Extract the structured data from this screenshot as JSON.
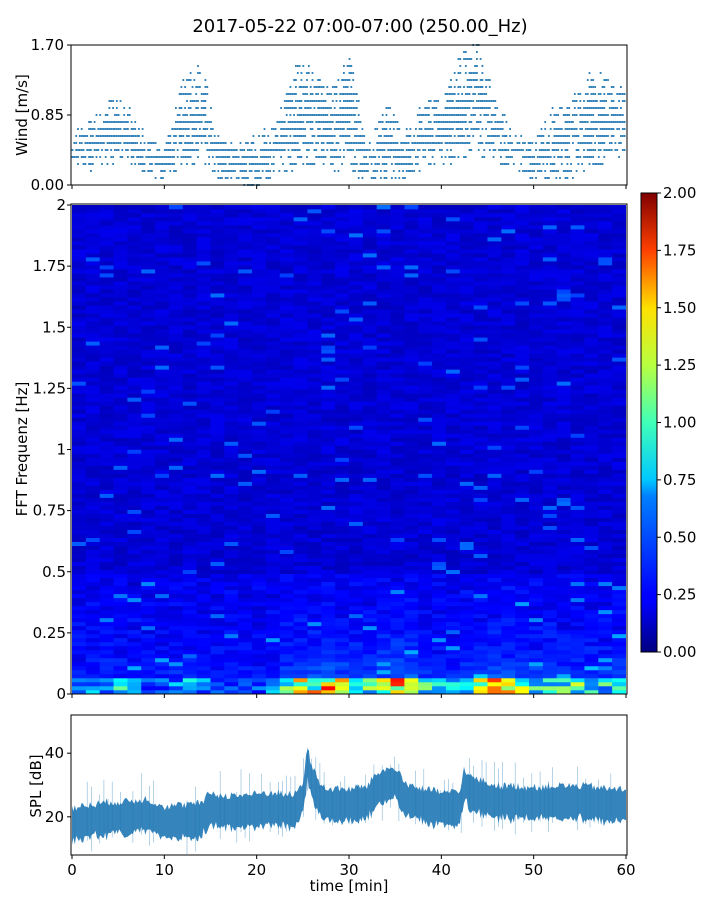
{
  "figure": {
    "title": "2017-05-22 07:00-07:00 (250.00_Hz)"
  },
  "colors": {
    "series": "#1f77b4",
    "axis": "#000000",
    "background": "#ffffff"
  },
  "chart_data": [
    {
      "type": "scatter",
      "ylabel": "Wind [m/s]",
      "xlim": [
        0,
        60
      ],
      "ylim": [
        0,
        1.7
      ],
      "yticks": [
        "0.00",
        "0.85",
        "1.70"
      ],
      "xticks_shown": false,
      "series": [
        {
          "x": [
            0,
            2,
            4,
            6,
            8,
            10,
            12,
            14,
            16,
            18,
            20,
            22,
            24,
            26,
            28,
            30,
            32,
            34,
            36,
            38,
            40,
            42,
            44,
            46,
            48,
            50,
            52,
            54,
            56,
            58,
            60
          ],
          "y_max": [
            0.6,
            0.75,
            1.05,
            0.95,
            0.6,
            0.4,
            1.25,
            1.45,
            0.55,
            0.45,
            0.6,
            0.7,
            1.45,
            1.45,
            1.1,
            1.6,
            0.45,
            1.0,
            0.6,
            1.0,
            1.0,
            1.55,
            1.7,
            1.0,
            0.6,
            0.5,
            0.9,
            1.0,
            1.4,
            1.3,
            1.1
          ],
          "y_min": [
            0.3,
            0.2,
            0.25,
            0.3,
            0.15,
            0.1,
            0.25,
            0.3,
            0.1,
            0.05,
            0.0,
            0.1,
            0.2,
            0.25,
            0.2,
            0.2,
            0.05,
            0.1,
            0.1,
            0.2,
            0.3,
            0.25,
            0.4,
            0.3,
            0.2,
            0.05,
            0.05,
            0.1,
            0.2,
            0.3,
            0.4
          ]
        }
      ]
    },
    {
      "type": "heatmap",
      "ylabel": "FFT Frequenz [Hz]",
      "xlim": [
        0,
        60
      ],
      "ylim": [
        0,
        2
      ],
      "yticks": [
        "0",
        "0.25",
        "0.5",
        "0.75",
        "1",
        "1.25",
        "1.5",
        "1.75",
        "2"
      ],
      "colormap": "jet",
      "colorbar": {
        "vmin": 0,
        "vmax": 2,
        "ticks": [
          "0.00",
          "0.25",
          "0.50",
          "0.75",
          "1.00",
          "1.25",
          "1.50",
          "1.75",
          "2.00"
        ]
      },
      "band_activity": [
        0.4,
        0.5,
        0.6,
        0.5,
        0.4,
        0.35,
        0.6,
        0.5,
        0.4,
        0.35,
        0.4,
        0.5,
        1.0,
        1.1,
        1.3,
        0.9,
        0.8,
        1.2,
        1.3,
        0.8,
        0.6,
        0.6,
        1.1,
        1.3,
        1.0,
        0.8,
        0.9,
        0.9,
        0.8,
        0.7,
        0.6
      ]
    },
    {
      "type": "line",
      "ylabel": "SPL [dB]",
      "xlabel": "time [min]",
      "xlim": [
        0,
        60
      ],
      "ylim": [
        8,
        52
      ],
      "yticks": [
        "20",
        "40"
      ],
      "xticks": [
        "0",
        "10",
        "20",
        "30",
        "40",
        "50",
        "60"
      ],
      "series": [
        {
          "x": [
            0,
            2,
            4,
            6,
            8,
            10,
            12,
            14,
            15,
            16,
            18,
            20,
            22,
            24,
            25,
            25.5,
            26,
            27,
            28,
            30,
            32,
            33,
            34,
            35,
            36,
            38,
            40,
            42,
            42.5,
            43,
            44,
            46,
            48,
            50,
            52,
            54,
            56,
            58,
            60
          ],
          "y": [
            18,
            19,
            20,
            20,
            21,
            18.5,
            19,
            19.5,
            23,
            22,
            22,
            22.5,
            23,
            22,
            26,
            37,
            31,
            25,
            24,
            24,
            25,
            29,
            30,
            31,
            26,
            24,
            23,
            23,
            31,
            28,
            27,
            25,
            25,
            24.5,
            25,
            25,
            25,
            24,
            24
          ]
        }
      ]
    }
  ]
}
